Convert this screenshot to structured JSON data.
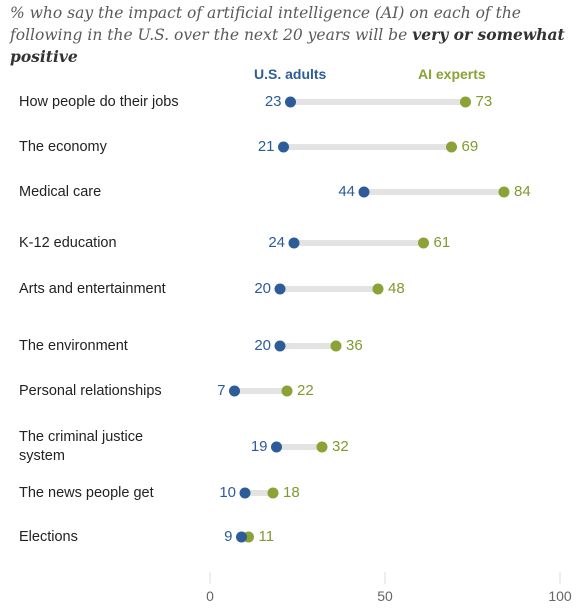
{
  "subtitle": {
    "prefix": "% who say the impact of artificial intelligence (AI) on each of the following in the U.S. over the next 20 years will be ",
    "emphasis": "very or somewhat positive"
  },
  "colors": {
    "us_adults": "#2e5c98",
    "ai_experts": "#8aa236",
    "connector": "#e3e3e3",
    "axis_line": "#dddddd"
  },
  "chart_data": {
    "type": "dot",
    "title": "",
    "xlim": [
      0,
      100
    ],
    "ticks": [
      "0",
      "50",
      "100"
    ],
    "series": [
      {
        "name": "U.S. adults",
        "values": [
          23,
          21,
          44,
          24,
          20,
          20,
          7,
          19,
          10,
          9
        ]
      },
      {
        "name": "AI experts",
        "values": [
          73,
          69,
          84,
          61,
          48,
          36,
          22,
          32,
          18,
          11
        ]
      }
    ],
    "categories": [
      "How people do their jobs",
      "The economy",
      "Medical care",
      "K-12 education",
      "Arts and entertainment",
      "The environment",
      "Personal relationships",
      "The criminal justice system",
      "The news people get",
      "Elections"
    ]
  },
  "legend": {
    "us": "U.S. adults",
    "ai": "AI experts"
  }
}
